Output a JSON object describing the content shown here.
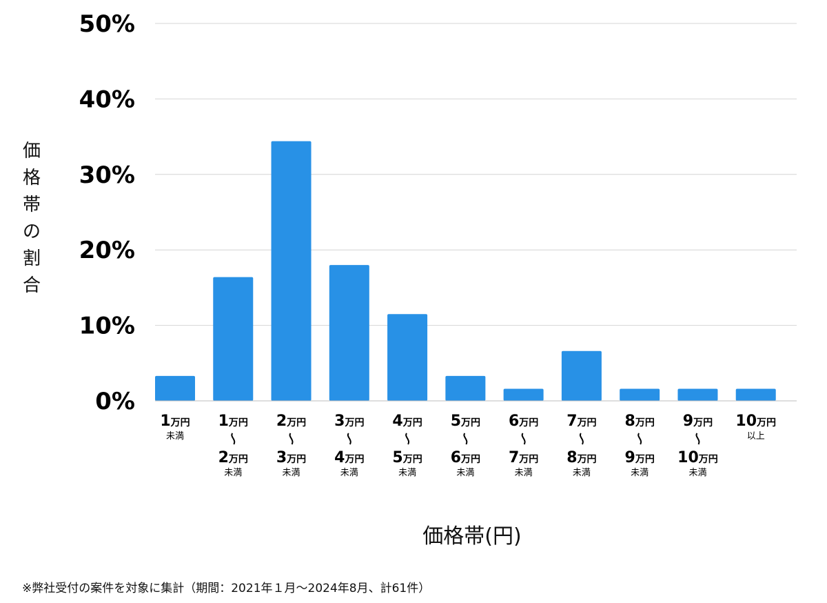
{
  "chart_data": {
    "type": "bar",
    "title": "",
    "ylabel": "価格帯の割合",
    "xlabel": "価格帯(円)",
    "ylim": [
      0,
      50
    ],
    "yticks": [
      "0%",
      "10%",
      "20%",
      "30%",
      "40%",
      "50%"
    ],
    "ytick_values": [
      0,
      10,
      20,
      30,
      40,
      50
    ],
    "grid": true,
    "bar_color": "#2891e6",
    "categories": [
      {
        "line1": "1",
        "line1_unit": "万円",
        "tilde": false,
        "line2": "",
        "line2_unit": "",
        "suffix": "未満"
      },
      {
        "line1": "1",
        "line1_unit": "万円",
        "tilde": true,
        "line2": "2",
        "line2_unit": "万円",
        "suffix": "未満"
      },
      {
        "line1": "2",
        "line1_unit": "万円",
        "tilde": true,
        "line2": "3",
        "line2_unit": "万円",
        "suffix": "未満"
      },
      {
        "line1": "3",
        "line1_unit": "万円",
        "tilde": true,
        "line2": "4",
        "line2_unit": "万円",
        "suffix": "未満"
      },
      {
        "line1": "4",
        "line1_unit": "万円",
        "tilde": true,
        "line2": "5",
        "line2_unit": "万円",
        "suffix": "未満"
      },
      {
        "line1": "5",
        "line1_unit": "万円",
        "tilde": true,
        "line2": "6",
        "line2_unit": "万円",
        "suffix": "未満"
      },
      {
        "line1": "6",
        "line1_unit": "万円",
        "tilde": true,
        "line2": "7",
        "line2_unit": "万円",
        "suffix": "未満"
      },
      {
        "line1": "7",
        "line1_unit": "万円",
        "tilde": true,
        "line2": "8",
        "line2_unit": "万円",
        "suffix": "未満"
      },
      {
        "line1": "8",
        "line1_unit": "万円",
        "tilde": true,
        "line2": "9",
        "line2_unit": "万円",
        "suffix": "未満"
      },
      {
        "line1": "9",
        "line1_unit": "万円",
        "tilde": true,
        "line2": "10",
        "line2_unit": "万円",
        "suffix": "未満"
      },
      {
        "line1": "10",
        "line1_unit": "万円",
        "tilde": false,
        "line2": "",
        "line2_unit": "",
        "suffix": "以上"
      }
    ],
    "values": [
      3.3,
      16.4,
      34.4,
      18.0,
      11.5,
      3.3,
      1.6,
      6.6,
      1.6,
      1.6,
      1.6
    ]
  },
  "footnote": "※弊社受付の案件を対象に集計（期間：2021年１月～2024年8月、計61件）"
}
